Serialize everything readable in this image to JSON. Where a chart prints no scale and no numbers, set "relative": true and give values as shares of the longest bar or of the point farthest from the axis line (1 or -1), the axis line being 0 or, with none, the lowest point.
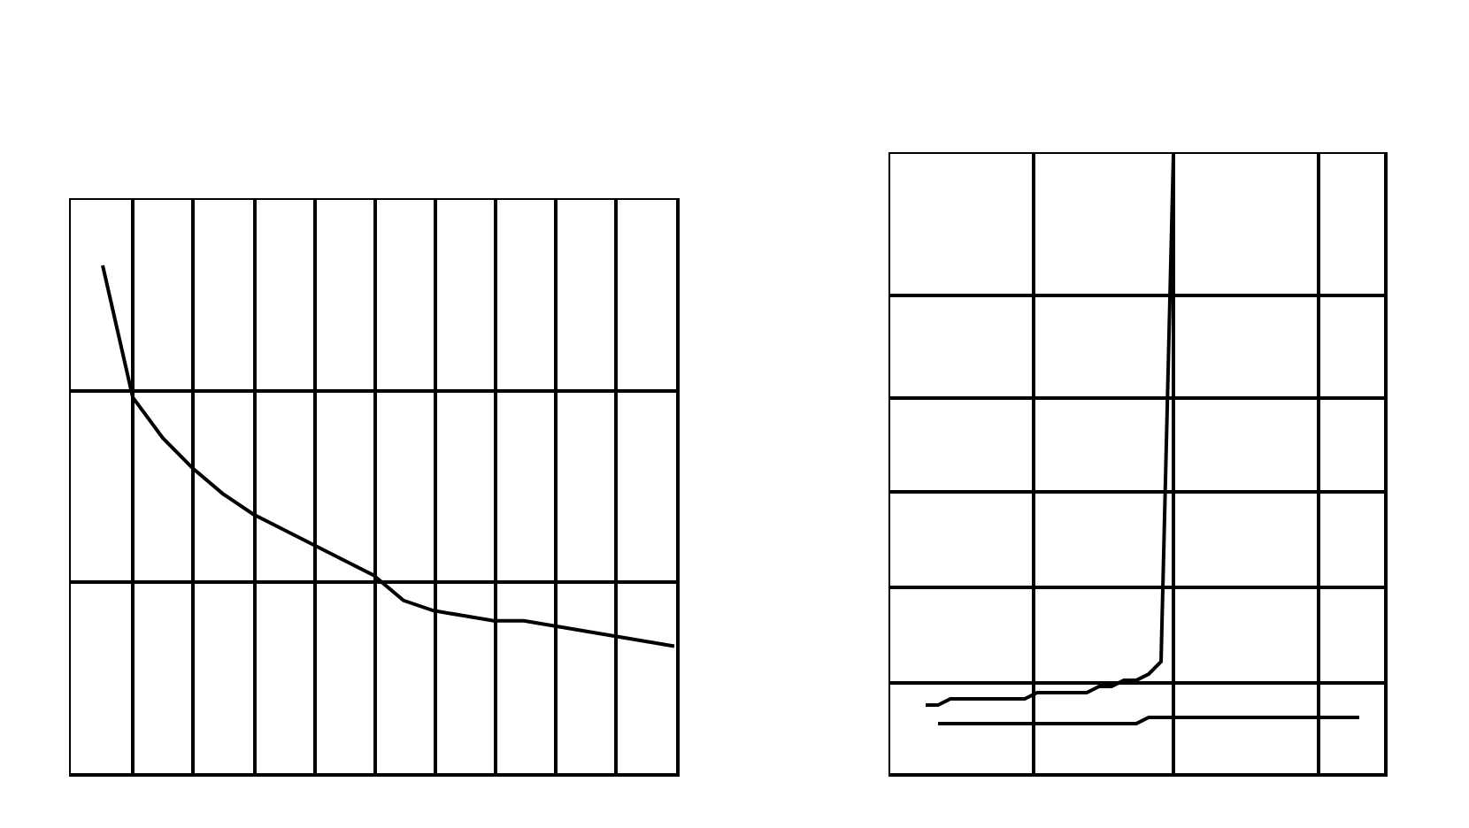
{
  "chart_data": [
    {
      "type": "line",
      "relative": true,
      "grid": true,
      "categories": [
        null,
        null,
        null,
        null,
        null,
        null,
        null,
        null,
        null,
        null,
        null,
        null,
        null,
        null,
        null,
        null,
        null,
        null,
        null,
        null
      ],
      "series": [
        {
          "color": "#000000",
          "values": [
            1,
            0.74,
            0.66,
            0.6,
            0.55,
            0.51,
            0.48,
            0.45,
            0.42,
            0.39,
            0.34,
            0.32,
            0.31,
            0.3,
            0.3,
            0.29,
            0.28,
            0.27,
            0.26,
            0.25
          ]
        }
      ]
    },
    {
      "type": "line",
      "relative": true,
      "grid": true,
      "categories": [
        null,
        null,
        null,
        null,
        null,
        null,
        null,
        null,
        null,
        null,
        null,
        null,
        null,
        null,
        null,
        null,
        null,
        null,
        null,
        null,
        null,
        null,
        null,
        null,
        null,
        null,
        null,
        null,
        null,
        null,
        null,
        null,
        null,
        null,
        null,
        null,
        null
      ],
      "series": [
        {
          "color": "#000000",
          "values": [
            0.11,
            0.11,
            0.12,
            0.12,
            0.12,
            0.12,
            0.12,
            0.12,
            0.12,
            0.13,
            0.13,
            0.13,
            0.13,
            0.13,
            0.14,
            0.14,
            0.15,
            0.15,
            0.16,
            0.18,
            1,
            null,
            null,
            null,
            null,
            null,
            null,
            null,
            null,
            null,
            null,
            null,
            null,
            null,
            null,
            null,
            null
          ]
        },
        {
          "color": "#000000",
          "values": [
            null,
            0.08,
            0.08,
            0.08,
            0.08,
            0.08,
            0.08,
            0.08,
            0.08,
            0.08,
            0.08,
            0.08,
            0.08,
            0.08,
            0.08,
            0.08,
            0.08,
            0.08,
            0.09,
            0.09,
            0.09,
            0.09,
            0.09,
            0.09,
            0.09,
            0.09,
            0.09,
            0.09,
            0.09,
            0.09,
            0.09,
            0.09,
            0.09,
            0.09,
            0.09,
            0.09,
            null
          ]
        }
      ]
    }
  ]
}
